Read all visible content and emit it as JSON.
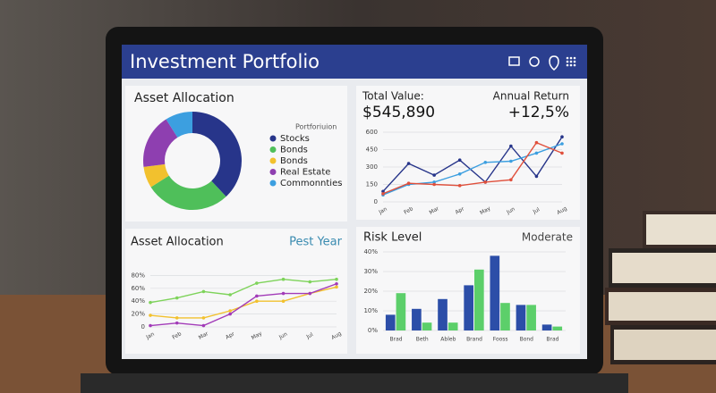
{
  "header": {
    "title": "Investment Portfolio"
  },
  "allocation": {
    "title": "Asset Allocation",
    "legend_title": "Portforiuion",
    "type": "pie",
    "items": [
      {
        "name": "Stocks",
        "color": "#27358a",
        "value": 38
      },
      {
        "name": "Bonds",
        "color": "#4fbf5a",
        "value": 28
      },
      {
        "name": "Bonds",
        "color": "#f2c12e",
        "value": 7
      },
      {
        "name": "Real Estate",
        "color": "#8e3fb0",
        "value": 18
      },
      {
        "name": "Commonnties",
        "color": "#3c9fe0",
        "value": 9
      }
    ]
  },
  "summary": {
    "total_label": "Total Value:",
    "total": "$545,890",
    "return_label": "Annual Return",
    "return": "+12,5%"
  },
  "value_chart": {
    "type": "line",
    "categories": [
      "Jan",
      "Feb",
      "Mar",
      "Apr",
      "May",
      "Jun",
      "Jul",
      "Aug"
    ],
    "ylim": [
      0,
      600
    ],
    "yticks": [
      0,
      150,
      300,
      450,
      600
    ],
    "series": [
      {
        "color": "#27358a",
        "values": [
          90,
          330,
          230,
          360,
          170,
          480,
          220,
          560
        ]
      },
      {
        "color": "#3c9fe0",
        "values": [
          60,
          150,
          170,
          240,
          340,
          350,
          420,
          500
        ]
      },
      {
        "color": "#e0503c",
        "values": [
          70,
          160,
          150,
          140,
          170,
          190,
          510,
          420
        ]
      }
    ]
  },
  "history": {
    "title": "Asset Allocation",
    "period": "Pest Year",
    "chart": {
      "type": "line",
      "categories": [
        "Jan",
        "Feb",
        "Mar",
        "Apr",
        "May",
        "Jun",
        "Jul",
        "Aug"
      ],
      "ylim": [
        0,
        100
      ],
      "yticks": [
        {
          "value": 0,
          "label": "0"
        },
        {
          "value": 20,
          "label": "20%"
        },
        {
          "value": 40,
          "label": "40%"
        },
        {
          "value": 60,
          "label": "60%"
        },
        {
          "value": 80,
          "label": "80%"
        }
      ],
      "series": [
        {
          "color": "#7ed35a",
          "values": [
            38,
            45,
            55,
            50,
            68,
            74,
            70,
            74
          ]
        },
        {
          "color": "#f2c12e",
          "values": [
            18,
            14,
            14,
            25,
            40,
            40,
            52,
            62
          ]
        },
        {
          "color": "#a23bb8",
          "values": [
            2,
            6,
            2,
            20,
            48,
            52,
            52,
            67
          ]
        }
      ]
    }
  },
  "risk": {
    "title": "Risk Level",
    "level": "Moderate",
    "chart": {
      "type": "bar",
      "categories": [
        "Brad",
        "Beth",
        "Ableb",
        "Brand",
        "Fooss",
        "Bond",
        "Brad"
      ],
      "ylim": [
        0,
        40
      ],
      "yticks": [
        {
          "value": 0,
          "label": "0%"
        },
        {
          "value": 10,
          "label": "10%"
        },
        {
          "value": 20,
          "label": "20%"
        },
        {
          "value": 30,
          "label": "30%"
        },
        {
          "value": 40,
          "label": "40%"
        }
      ],
      "series": [
        {
          "color": "#2c4ea8",
          "values": [
            8,
            11,
            16,
            23,
            38,
            13,
            3
          ]
        },
        {
          "color": "#5ccf6a",
          "values": [
            19,
            4,
            4,
            31,
            14,
            13,
            2
          ]
        }
      ]
    }
  }
}
